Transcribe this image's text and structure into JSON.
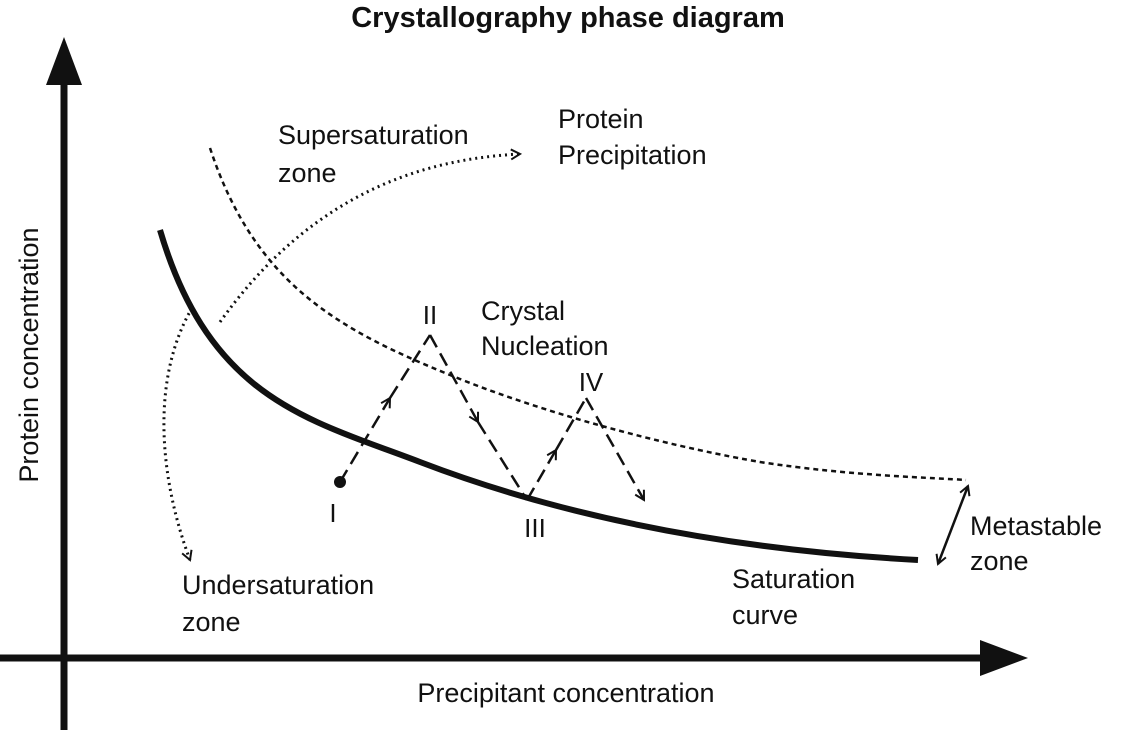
{
  "title": "Crystallography phase diagram",
  "axes": {
    "x_label": "Precipitant concentration",
    "y_label": "Protein concentration"
  },
  "zones": {
    "supersaturation": [
      "Supersaturation",
      "zone"
    ],
    "precipitation": [
      "Protein",
      "Precipitation"
    ],
    "nucleation": [
      "Crystal",
      "Nucleation"
    ],
    "metastable": [
      "Metastable",
      "zone"
    ],
    "undersaturation": [
      "Undersaturation",
      "zone"
    ],
    "saturation": [
      "Saturation",
      "curve"
    ]
  },
  "points": {
    "p1": "I",
    "p2": "II",
    "p3": "III",
    "p4": "IV"
  },
  "colors": {
    "ink": "#111111",
    "background": "#ffffff"
  }
}
